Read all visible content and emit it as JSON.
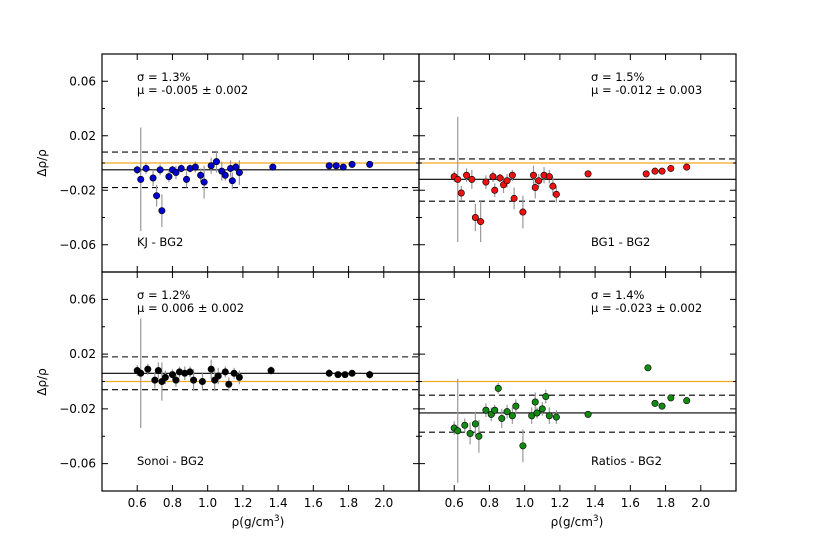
{
  "figure": {
    "x_axis_label_prefix": "ρ(g/cm",
    "x_axis_label_exp": "3",
    "x_axis_label_suffix": ")",
    "y_axis_label": "Δρ/ρ",
    "x_tick_labels": [
      "0.6",
      "0.8",
      "1.0",
      "1.2",
      "1.4",
      "1.6",
      "1.8",
      "2.0"
    ],
    "y_tick_labels": [
      "0.06",
      "0.02",
      "−0.02",
      "−0.06"
    ],
    "colors": {
      "reference_line": "#f5a623",
      "mean_line": "#000000",
      "sigma_lines": "#000000",
      "error_bars": "#999999"
    }
  },
  "chart_data": [
    {
      "type": "scatter",
      "panel": "top-left",
      "label": "KJ - BG2",
      "sigma_text": "σ = 1.3%",
      "mu_text": "μ = -0.005 ± 0.002",
      "marker_color": "#0000cc",
      "xlim": [
        0.4,
        2.2
      ],
      "ylim": [
        -0.08,
        0.08
      ],
      "mean": -0.005,
      "sigma_band": [
        -0.018,
        0.008
      ],
      "reference": 0.0,
      "points": [
        {
          "x": 0.6,
          "y": -0.005,
          "err": 0.003
        },
        {
          "x": 0.62,
          "y": -0.012,
          "err": 0.038
        },
        {
          "x": 0.65,
          "y": -0.004,
          "err": 0.004
        },
        {
          "x": 0.69,
          "y": -0.011,
          "err": 0.006
        },
        {
          "x": 0.71,
          "y": -0.024,
          "err": 0.008
        },
        {
          "x": 0.73,
          "y": -0.005,
          "err": 0.004
        },
        {
          "x": 0.74,
          "y": -0.035,
          "err": 0.012
        },
        {
          "x": 0.78,
          "y": -0.01,
          "err": 0.004
        },
        {
          "x": 0.8,
          "y": -0.005,
          "err": 0.003
        },
        {
          "x": 0.82,
          "y": -0.007,
          "err": 0.005
        },
        {
          "x": 0.85,
          "y": -0.004,
          "err": 0.003
        },
        {
          "x": 0.88,
          "y": -0.012,
          "err": 0.006
        },
        {
          "x": 0.9,
          "y": -0.004,
          "err": 0.003
        },
        {
          "x": 0.93,
          "y": -0.003,
          "err": 0.004
        },
        {
          "x": 0.96,
          "y": -0.009,
          "err": 0.005
        },
        {
          "x": 0.98,
          "y": -0.014,
          "err": 0.012
        },
        {
          "x": 1.02,
          "y": -0.002,
          "err": 0.006
        },
        {
          "x": 1.05,
          "y": 0.001,
          "err": 0.008
        },
        {
          "x": 1.08,
          "y": -0.006,
          "err": 0.007
        },
        {
          "x": 1.1,
          "y": -0.009,
          "err": 0.004
        },
        {
          "x": 1.13,
          "y": -0.004,
          "err": 0.006
        },
        {
          "x": 1.14,
          "y": -0.013,
          "err": 0.006
        },
        {
          "x": 1.16,
          "y": -0.003,
          "err": 0.003
        },
        {
          "x": 1.18,
          "y": -0.007,
          "err": 0.009
        },
        {
          "x": 1.37,
          "y": -0.003,
          "err": 0.002
        },
        {
          "x": 1.69,
          "y": -0.002,
          "err": 0.002
        },
        {
          "x": 1.73,
          "y": -0.002,
          "err": 0.002
        },
        {
          "x": 1.77,
          "y": -0.003,
          "err": 0.002
        },
        {
          "x": 1.82,
          "y": -0.001,
          "err": 0.002
        },
        {
          "x": 1.92,
          "y": -0.001,
          "err": 0.002
        }
      ]
    },
    {
      "type": "scatter",
      "panel": "top-right",
      "label": "BG1 - BG2",
      "sigma_text": "σ = 1.5%",
      "mu_text": "μ = -0.012 ± 0.003",
      "marker_color": "#ee1111",
      "xlim": [
        0.4,
        2.2
      ],
      "ylim": [
        -0.08,
        0.08
      ],
      "mean": -0.012,
      "sigma_band": [
        -0.028,
        0.003
      ],
      "reference": 0.0,
      "points": [
        {
          "x": 0.6,
          "y": -0.01,
          "err": 0.004
        },
        {
          "x": 0.62,
          "y": -0.012,
          "err": 0.046
        },
        {
          "x": 0.64,
          "y": -0.022,
          "err": 0.005
        },
        {
          "x": 0.67,
          "y": -0.009,
          "err": 0.005
        },
        {
          "x": 0.7,
          "y": -0.012,
          "err": 0.007
        },
        {
          "x": 0.72,
          "y": -0.04,
          "err": 0.01
        },
        {
          "x": 0.75,
          "y": -0.043,
          "err": 0.015
        },
        {
          "x": 0.78,
          "y": -0.014,
          "err": 0.005
        },
        {
          "x": 0.82,
          "y": -0.01,
          "err": 0.004
        },
        {
          "x": 0.83,
          "y": -0.02,
          "err": 0.005
        },
        {
          "x": 0.86,
          "y": -0.011,
          "err": 0.003
        },
        {
          "x": 0.88,
          "y": -0.016,
          "err": 0.006
        },
        {
          "x": 0.9,
          "y": -0.013,
          "err": 0.005
        },
        {
          "x": 0.93,
          "y": -0.009,
          "err": 0.004
        },
        {
          "x": 0.94,
          "y": -0.026,
          "err": 0.008
        },
        {
          "x": 0.99,
          "y": -0.036,
          "err": 0.012
        },
        {
          "x": 1.05,
          "y": -0.009,
          "err": 0.007
        },
        {
          "x": 1.06,
          "y": -0.018,
          "err": 0.008
        },
        {
          "x": 1.08,
          "y": -0.013,
          "err": 0.005
        },
        {
          "x": 1.11,
          "y": -0.009,
          "err": 0.006
        },
        {
          "x": 1.14,
          "y": -0.01,
          "err": 0.005
        },
        {
          "x": 1.16,
          "y": -0.017,
          "err": 0.007
        },
        {
          "x": 1.18,
          "y": -0.023,
          "err": 0.006
        },
        {
          "x": 1.36,
          "y": -0.008,
          "err": 0.002
        },
        {
          "x": 1.69,
          "y": -0.008,
          "err": 0.002
        },
        {
          "x": 1.74,
          "y": -0.006,
          "err": 0.002
        },
        {
          "x": 1.78,
          "y": -0.006,
          "err": 0.002
        },
        {
          "x": 1.83,
          "y": -0.004,
          "err": 0.002
        },
        {
          "x": 1.92,
          "y": -0.003,
          "err": 0.002
        }
      ]
    },
    {
      "type": "scatter",
      "panel": "bottom-left",
      "label": "Sonoi - BG2",
      "sigma_text": "σ = 1.2%",
      "mu_text": "μ = 0.006 ± 0.002",
      "marker_color": "#000000",
      "xlim": [
        0.4,
        2.2
      ],
      "ylim": [
        -0.08,
        0.08
      ],
      "mean": 0.006,
      "sigma_band": [
        -0.006,
        0.018
      ],
      "reference": 0.0,
      "points": [
        {
          "x": 0.6,
          "y": 0.008,
          "err": 0.004
        },
        {
          "x": 0.62,
          "y": 0.006,
          "err": 0.04
        },
        {
          "x": 0.66,
          "y": 0.009,
          "err": 0.004
        },
        {
          "x": 0.7,
          "y": 0.001,
          "err": 0.006
        },
        {
          "x": 0.72,
          "y": 0.008,
          "err": 0.006
        },
        {
          "x": 0.74,
          "y": 0.0,
          "err": 0.014
        },
        {
          "x": 0.76,
          "y": 0.003,
          "err": 0.005
        },
        {
          "x": 0.8,
          "y": 0.005,
          "err": 0.004
        },
        {
          "x": 0.82,
          "y": 0.001,
          "err": 0.005
        },
        {
          "x": 0.84,
          "y": 0.007,
          "err": 0.004
        },
        {
          "x": 0.87,
          "y": 0.006,
          "err": 0.005
        },
        {
          "x": 0.9,
          "y": 0.007,
          "err": 0.004
        },
        {
          "x": 0.92,
          "y": 0.001,
          "err": 0.008
        },
        {
          "x": 0.97,
          "y": 0.0,
          "err": 0.006
        },
        {
          "x": 1.02,
          "y": 0.009,
          "err": 0.007
        },
        {
          "x": 1.04,
          "y": 0.001,
          "err": 0.008
        },
        {
          "x": 1.06,
          "y": 0.004,
          "err": 0.006
        },
        {
          "x": 1.1,
          "y": 0.007,
          "err": 0.004
        },
        {
          "x": 1.12,
          "y": -0.002,
          "err": 0.005
        },
        {
          "x": 1.15,
          "y": 0.006,
          "err": 0.004
        },
        {
          "x": 1.18,
          "y": 0.003,
          "err": 0.005
        },
        {
          "x": 1.36,
          "y": 0.008,
          "err": 0.003
        },
        {
          "x": 1.69,
          "y": 0.006,
          "err": 0.003
        },
        {
          "x": 1.74,
          "y": 0.005,
          "err": 0.002
        },
        {
          "x": 1.78,
          "y": 0.005,
          "err": 0.002
        },
        {
          "x": 1.82,
          "y": 0.006,
          "err": 0.002
        },
        {
          "x": 1.92,
          "y": 0.005,
          "err": 0.003
        }
      ]
    },
    {
      "type": "scatter",
      "panel": "bottom-right",
      "label": "Ratios - BG2",
      "sigma_text": "σ = 1.4%",
      "mu_text": "μ = -0.023 ± 0.002",
      "marker_color": "#138a13",
      "xlim": [
        0.4,
        2.2
      ],
      "ylim": [
        -0.08,
        0.08
      ],
      "mean": -0.023,
      "sigma_band": [
        -0.037,
        -0.01
      ],
      "reference": 0.0,
      "points": [
        {
          "x": 0.6,
          "y": -0.034,
          "err": 0.005
        },
        {
          "x": 0.62,
          "y": -0.036,
          "err": 0.038
        },
        {
          "x": 0.66,
          "y": -0.032,
          "err": 0.005
        },
        {
          "x": 0.69,
          "y": -0.038,
          "err": 0.008
        },
        {
          "x": 0.72,
          "y": -0.031,
          "err": 0.009
        },
        {
          "x": 0.74,
          "y": -0.04,
          "err": 0.012
        },
        {
          "x": 0.78,
          "y": -0.021,
          "err": 0.005
        },
        {
          "x": 0.81,
          "y": -0.024,
          "err": 0.005
        },
        {
          "x": 0.83,
          "y": -0.021,
          "err": 0.004
        },
        {
          "x": 0.85,
          "y": -0.005,
          "err": 0.004
        },
        {
          "x": 0.87,
          "y": -0.027,
          "err": 0.007
        },
        {
          "x": 0.9,
          "y": -0.022,
          "err": 0.005
        },
        {
          "x": 0.93,
          "y": -0.025,
          "err": 0.006
        },
        {
          "x": 0.95,
          "y": -0.018,
          "err": 0.005
        },
        {
          "x": 0.99,
          "y": -0.047,
          "err": 0.012
        },
        {
          "x": 1.04,
          "y": -0.025,
          "err": 0.006
        },
        {
          "x": 1.06,
          "y": -0.015,
          "err": 0.007
        },
        {
          "x": 1.07,
          "y": -0.023,
          "err": 0.004
        },
        {
          "x": 1.1,
          "y": -0.02,
          "err": 0.005
        },
        {
          "x": 1.12,
          "y": -0.011,
          "err": 0.005
        },
        {
          "x": 1.14,
          "y": -0.025,
          "err": 0.006
        },
        {
          "x": 1.18,
          "y": -0.026,
          "err": 0.005
        },
        {
          "x": 1.36,
          "y": -0.024,
          "err": 0.002
        },
        {
          "x": 1.7,
          "y": 0.01,
          "err": 0.002
        },
        {
          "x": 1.74,
          "y": -0.016,
          "err": 0.002
        },
        {
          "x": 1.78,
          "y": -0.018,
          "err": 0.002
        },
        {
          "x": 1.83,
          "y": -0.012,
          "err": 0.002
        },
        {
          "x": 1.92,
          "y": -0.014,
          "err": 0.002
        }
      ]
    }
  ]
}
